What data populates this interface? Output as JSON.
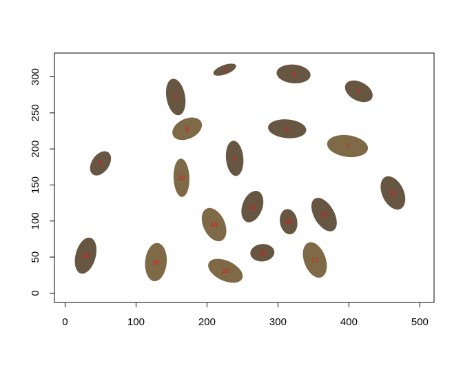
{
  "chart_data": {
    "type": "scatter",
    "title": "",
    "xlabel": "",
    "ylabel": "",
    "xlim": [
      -15,
      520
    ],
    "ylim": [
      -13,
      333
    ],
    "grid": false,
    "legend": "none",
    "x_ticks": [
      0,
      100,
      200,
      300,
      400,
      500
    ],
    "y_ticks": [
      0,
      50,
      100,
      150,
      200,
      250,
      300
    ],
    "colors": {
      "dark": "#675641",
      "light": "#7f6a48",
      "label": "#e8121a"
    },
    "objects": [
      {
        "label": "1",
        "x": 225,
        "y": 310,
        "length": 34,
        "width": 13,
        "angle": 20,
        "tone": "dark"
      },
      {
        "label": "2",
        "x": 156,
        "y": 272,
        "length": 52,
        "width": 26,
        "angle": -80,
        "tone": "dark"
      },
      {
        "label": "3",
        "x": 322,
        "y": 304,
        "length": 48,
        "width": 26,
        "angle": -5,
        "tone": "dark"
      },
      {
        "label": "4",
        "x": 414,
        "y": 280,
        "length": 42,
        "width": 26,
        "angle": -28,
        "tone": "dark"
      },
      {
        "label": "5",
        "x": 172,
        "y": 228,
        "length": 44,
        "width": 28,
        "angle": 25,
        "tone": "light"
      },
      {
        "label": "6",
        "x": 313,
        "y": 228,
        "length": 54,
        "width": 26,
        "angle": -5,
        "tone": "dark"
      },
      {
        "label": "7",
        "x": 398,
        "y": 204,
        "length": 58,
        "width": 30,
        "angle": -8,
        "tone": "light"
      },
      {
        "label": "8",
        "x": 239,
        "y": 187,
        "length": 50,
        "width": 24,
        "angle": -85,
        "tone": "dark"
      },
      {
        "label": "9",
        "x": 50,
        "y": 180,
        "length": 38,
        "width": 24,
        "angle": 55,
        "tone": "dark"
      },
      {
        "label": "10",
        "x": 164,
        "y": 160,
        "length": 54,
        "width": 22,
        "angle": -88,
        "tone": "light"
      },
      {
        "label": "11",
        "x": 462,
        "y": 139,
        "length": 50,
        "width": 30,
        "angle": -65,
        "tone": "dark"
      },
      {
        "label": "12",
        "x": 264,
        "y": 120,
        "length": 46,
        "width": 28,
        "angle": 70,
        "tone": "dark"
      },
      {
        "label": "13",
        "x": 365,
        "y": 109,
        "length": 52,
        "width": 28,
        "angle": -60,
        "tone": "dark"
      },
      {
        "label": "14",
        "x": 210,
        "y": 95,
        "length": 50,
        "width": 30,
        "angle": -65,
        "tone": "light"
      },
      {
        "label": "15",
        "x": 315,
        "y": 99,
        "length": 36,
        "width": 24,
        "angle": -80,
        "tone": "dark"
      },
      {
        "label": "16",
        "x": 29,
        "y": 52,
        "length": 52,
        "width": 28,
        "angle": 75,
        "tone": "dark"
      },
      {
        "label": "17",
        "x": 352,
        "y": 46,
        "length": 52,
        "width": 30,
        "angle": -70,
        "tone": "light"
      },
      {
        "label": "18",
        "x": 128,
        "y": 43,
        "length": 54,
        "width": 30,
        "angle": 85,
        "tone": "light"
      },
      {
        "label": "19",
        "x": 278,
        "y": 56,
        "length": 34,
        "width": 24,
        "angle": 5,
        "tone": "dark"
      },
      {
        "label": "20",
        "x": 226,
        "y": 31,
        "length": 52,
        "width": 28,
        "angle": -25,
        "tone": "light"
      }
    ]
  }
}
